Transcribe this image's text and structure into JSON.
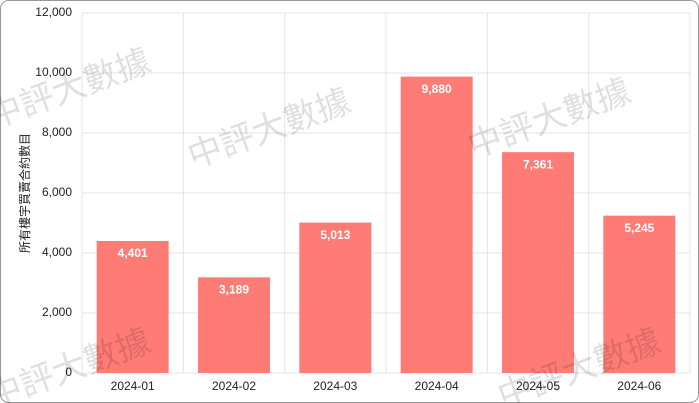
{
  "chart_data": {
    "type": "bar",
    "y_label": "所有樓宇買賣合約數目",
    "watermark": "中評大數據",
    "categories": [
      "2024-01",
      "2024-02",
      "2024-03",
      "2024-04",
      "2024-05",
      "2024-06"
    ],
    "values": [
      4401,
      3189,
      5013,
      9880,
      7361,
      5245
    ],
    "value_labels": [
      "4,401",
      "3,189",
      "5,013",
      "9,880",
      "7,361",
      "5,245"
    ],
    "color": "#ff7b76",
    "ylim": [
      0,
      12000
    ],
    "yticks": [
      0,
      {
        "value": 2000,
        "label": "2,000"
      },
      {
        "value": 4000,
        "label": "4,000"
      },
      {
        "value": 6000,
        "label": "6,000"
      },
      {
        "value": 8000,
        "label": "8,000"
      },
      {
        "value": 10000,
        "label": "10,000"
      },
      {
        "value": 12000,
        "label": "12,000"
      }
    ],
    "grid": true
  }
}
